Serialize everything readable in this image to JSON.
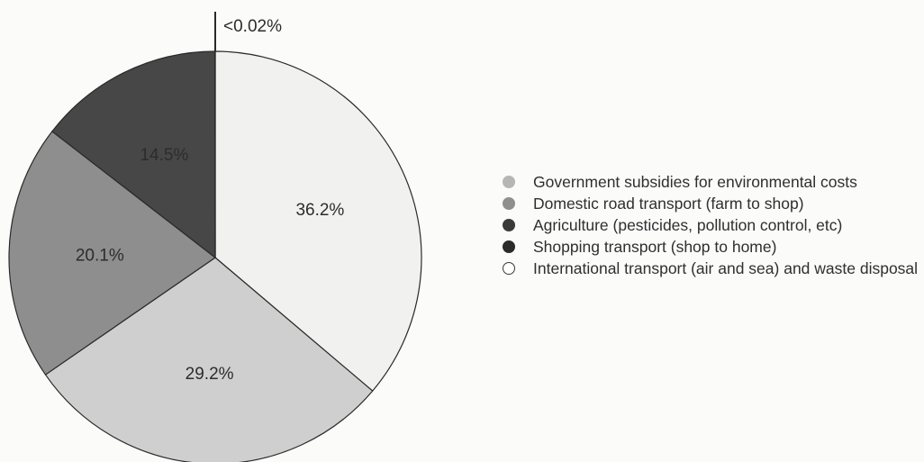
{
  "chart_data": {
    "type": "pie",
    "start": "12 o'clock",
    "direction": "clockwise",
    "slices": [
      {
        "label": "International transport (air and sea) and waste disposal",
        "value": 36.2,
        "display": "36.2%",
        "color": "#f1f1f0"
      },
      {
        "label": "Government subsidies for environmental costs",
        "value": 29.2,
        "display": "29.2%",
        "color": "#cfcfcf"
      },
      {
        "label": "Domestic road transport (farm to shop)",
        "value": 20.1,
        "display": "20.1%",
        "color": "#8e8e8e"
      },
      {
        "label": "Shopping transport (shop to home)",
        "value": 14.5,
        "display": "14.5%",
        "color": "#474747"
      },
      {
        "label": "Agriculture (pesticides, pollution control, etc)",
        "value": 0.02,
        "display": "<0.02%",
        "color": "#3a3a3a"
      }
    ],
    "legend": {
      "placement": "right",
      "entries": [
        {
          "text": "Government subsidies for environmental costs",
          "color": "#b6b6b6"
        },
        {
          "text": "Domestic road transport (farm to shop)",
          "color": "#8f8f8f"
        },
        {
          "text": "Agriculture (pesticides, pollution control, etc)",
          "color": "#3a3a3a"
        },
        {
          "text": "Shopping transport (shop to home)",
          "color": "#2b2b2b"
        },
        {
          "text": "International transport (air and sea) and waste disposal",
          "color": "#ffffff"
        }
      ]
    }
  }
}
